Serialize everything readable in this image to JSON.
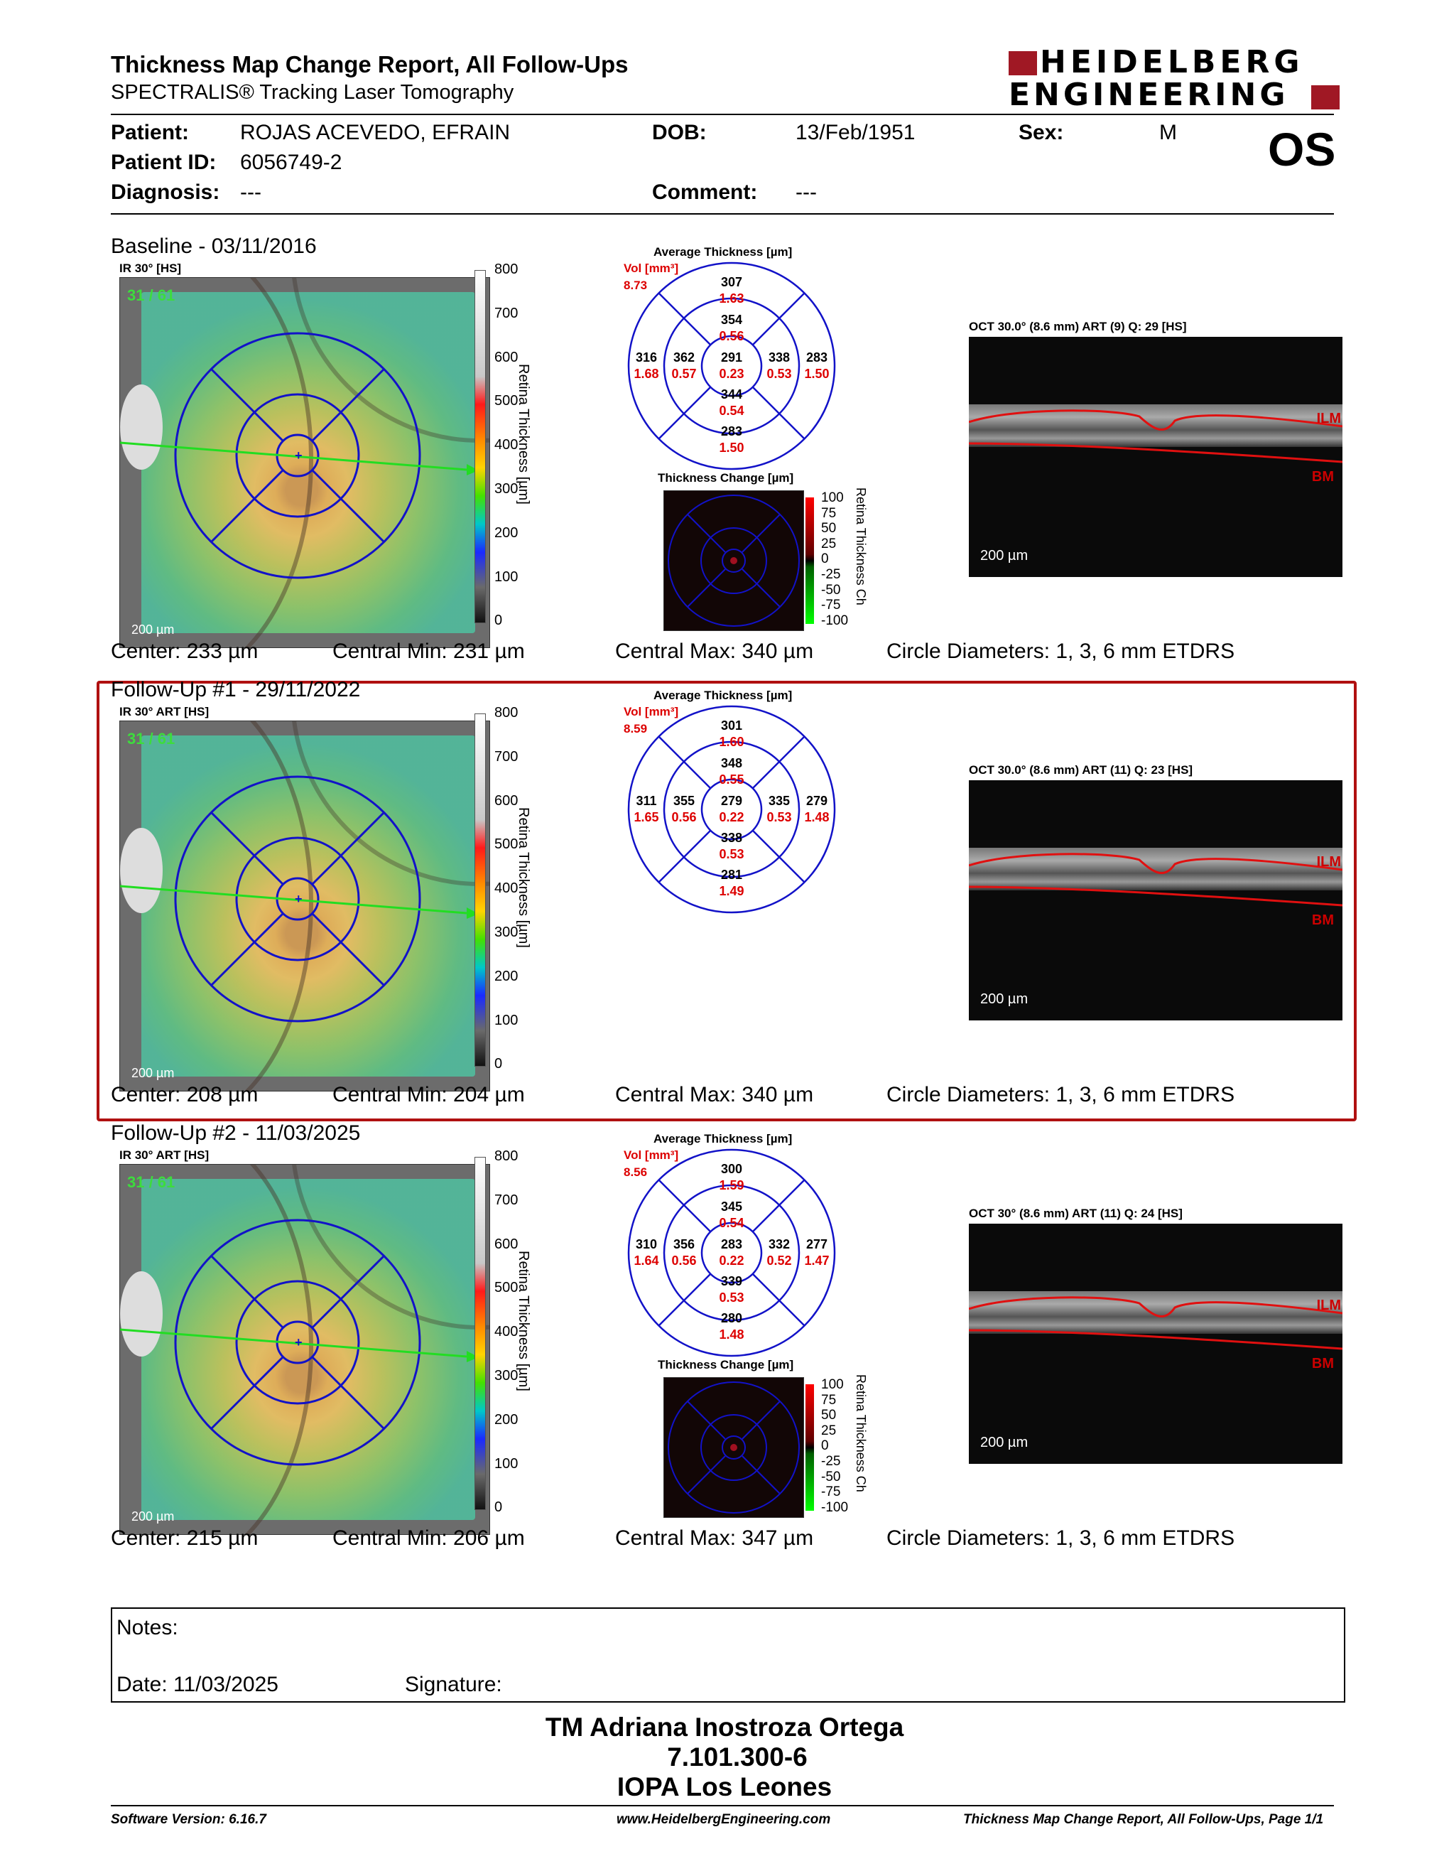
{
  "header": {
    "title": "Thickness Map Change Report, All Follow-Ups",
    "subtitle": "SPECTRALIS® Tracking Laser Tomography",
    "logo_line1": "HEIDELBERG",
    "logo_line2": "ENGINEERING",
    "eye": "OS"
  },
  "patient": {
    "patient_label": "Patient:",
    "patient_value": "ROJAS ACEVEDO, EFRAIN",
    "id_label": "Patient ID:",
    "id_value": "6056749-2",
    "diag_label": "Diagnosis:",
    "diag_value": "---",
    "dob_label": "DOB:",
    "dob_value": "13/Feb/1951",
    "comment_label": "Comment:",
    "comment_value": "---",
    "sex_label": "Sex:",
    "sex_value": "M"
  },
  "colorbar_ticks": [
    "800",
    "700",
    "600",
    "500",
    "400",
    "300",
    "200",
    "100",
    "0"
  ],
  "colorbar_label": "Retina Thickness [µm]",
  "change_ticks": [
    "100",
    "75",
    "50",
    "25",
    "0",
    "-25",
    "-50",
    "-75",
    "-100"
  ],
  "change_label": "Retina Thickness Ch",
  "avg_title": "Average Thickness [µm]",
  "change_title": "Thickness Change [µm]",
  "vol_label": "Vol [mm³]",
  "scale_label": "200 µm",
  "count_label": "31 / 61",
  "sections": [
    {
      "title": "Baseline - 03/11/2016",
      "img_title": "IR 30° [HS]",
      "oct_title": "OCT 30.0° (8.6 mm) ART (9) Q: 29 [HS]",
      "vol": "8.73",
      "grid": {
        "outer_top": "307",
        "outer_top_v": "1.63",
        "inner_top": "354",
        "inner_top_v": "0.56",
        "outer_left": "316",
        "outer_left_v": "1.68",
        "inner_left": "362",
        "inner_left_v": "0.57",
        "center": "291",
        "center_v": "0.23",
        "inner_right": "338",
        "inner_right_v": "0.53",
        "outer_right": "283",
        "outer_right_v": "1.50",
        "inner_bottom": "344",
        "inner_bottom_v": "0.54",
        "outer_bottom": "283",
        "outer_bottom_v": "1.50"
      },
      "center_stat": "Center: 233 µm",
      "min_stat": "Central Min: 231 µm",
      "max_stat": "Central Max: 340 µm",
      "circle": "Circle Diameters:  1, 3, 6 mm ETDRS"
    },
    {
      "title": "Follow-Up #1 - 29/11/2022",
      "img_title": "IR 30° ART [HS]",
      "oct_title": "OCT 30.0° (8.6 mm) ART (11) Q: 23 [HS]",
      "vol": "8.59",
      "grid": {
        "outer_top": "301",
        "outer_top_v": "1.60",
        "inner_top": "348",
        "inner_top_v": "0.55",
        "outer_left": "311",
        "outer_left_v": "1.65",
        "inner_left": "355",
        "inner_left_v": "0.56",
        "center": "279",
        "center_v": "0.22",
        "inner_right": "335",
        "inner_right_v": "0.53",
        "outer_right": "279",
        "outer_right_v": "1.48",
        "inner_bottom": "338",
        "inner_bottom_v": "0.53",
        "outer_bottom": "281",
        "outer_bottom_v": "1.49"
      },
      "center_stat": "Center: 208 µm",
      "min_stat": "Central Min: 204 µm",
      "max_stat": "Central Max: 340 µm",
      "circle": "Circle Diameters:  1, 3, 6 mm ETDRS"
    },
    {
      "title": "Follow-Up #2 - 11/03/2025",
      "img_title": "IR 30° ART [HS]",
      "oct_title": "OCT 30° (8.6 mm) ART (11) Q: 24 [HS]",
      "vol": "8.56",
      "grid": {
        "outer_top": "300",
        "outer_top_v": "1.59",
        "inner_top": "345",
        "inner_top_v": "0.54",
        "outer_left": "310",
        "outer_left_v": "1.64",
        "inner_left": "356",
        "inner_left_v": "0.56",
        "center": "283",
        "center_v": "0.22",
        "inner_right": "332",
        "inner_right_v": "0.52",
        "outer_right": "277",
        "outer_right_v": "1.47",
        "inner_bottom": "339",
        "inner_bottom_v": "0.53",
        "outer_bottom": "280",
        "outer_bottom_v": "1.48"
      },
      "center_stat": "Center: 215 µm",
      "min_stat": "Central Min: 206 µm",
      "max_stat": "Central Max: 347 µm",
      "circle": "Circle Diameters:  1, 3, 6 mm ETDRS"
    }
  ],
  "oct_labels": {
    "ilm": "ILM",
    "bm": "BM"
  },
  "notes": {
    "label": "Notes:",
    "date": "Date: 11/03/2025",
    "signature": "Signature:"
  },
  "signer": {
    "name": "TM Adriana Inostroza Ortega",
    "id": "7.101.300-6",
    "place": "IOPA Los Leones"
  },
  "footer": {
    "version": "Software Version: 6.16.7",
    "url": "www.HeidelbergEngineering.com",
    "page": "Thickness Map Change Report, All Follow-Ups, Page 1/1"
  },
  "colors": {
    "accent_red": "#b01010",
    "value_red": "#d00000",
    "etdrs_blue": "#1010c0"
  }
}
